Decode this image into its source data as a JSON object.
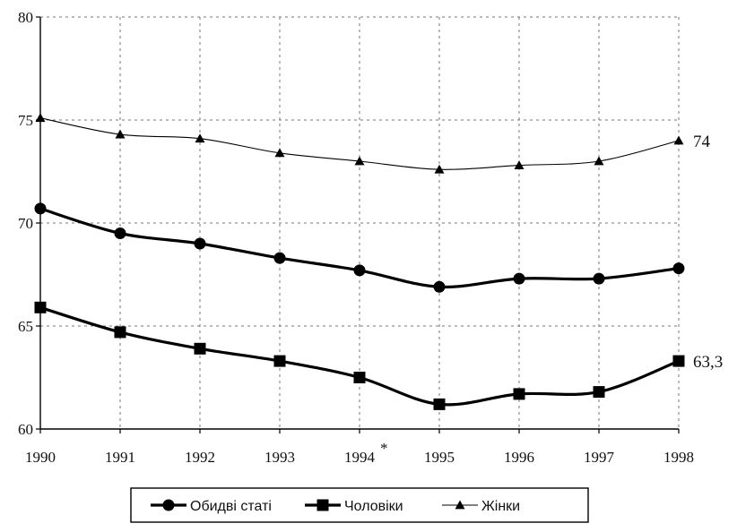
{
  "chart_data": {
    "type": "line",
    "categories": [
      "1990",
      "1991",
      "1992",
      "1993",
      "1994",
      "1995",
      "1996",
      "1997",
      "1998"
    ],
    "tick_suffix": {
      "1994": "*"
    },
    "series": [
      {
        "name": "Обидві статі",
        "marker": "circle",
        "line_weight": "thick",
        "color": "#000000",
        "values": [
          70.7,
          69.5,
          69.0,
          68.3,
          67.7,
          66.9,
          67.3,
          67.3,
          67.8
        ]
      },
      {
        "name": "Чоловіки",
        "marker": "square",
        "line_weight": "thick",
        "color": "#000000",
        "values": [
          65.9,
          64.7,
          63.9,
          63.3,
          62.5,
          61.2,
          61.7,
          61.8,
          63.3
        ],
        "end_label": "63,3"
      },
      {
        "name": "Жінки",
        "marker": "triangle",
        "line_weight": "thin",
        "color": "#000000",
        "values": [
          75.1,
          74.3,
          74.1,
          73.4,
          73.0,
          72.6,
          72.8,
          73.0,
          74.0
        ],
        "end_label": "74"
      }
    ],
    "ylim": [
      60,
      80
    ],
    "yticks": [
      60,
      65,
      70,
      75,
      80
    ],
    "grid": true,
    "legend_position": "bottom-center",
    "title": "",
    "xlabel": "",
    "ylabel": ""
  }
}
